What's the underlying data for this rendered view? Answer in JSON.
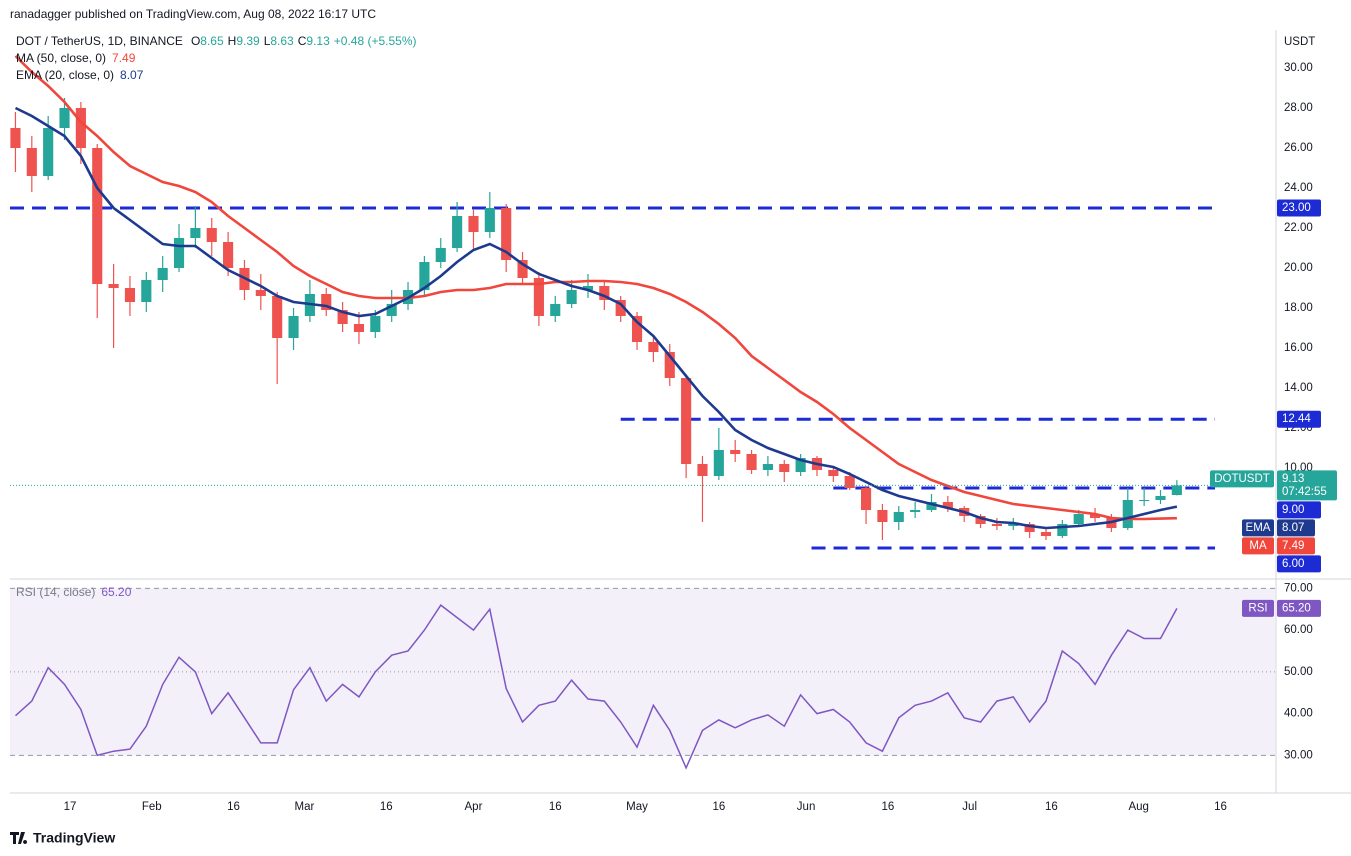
{
  "header": {
    "publisher": "ranadagger published on TradingView.com, Aug 08, 2022 16:17 UTC",
    "symbol": "DOT / TetherUS, 1D, BINANCE",
    "ohlc_labels": [
      "O",
      "H",
      "L",
      "C"
    ],
    "change": "+0.48 (+5.55%)",
    "currency": "USDT"
  },
  "chart_data": [
    {
      "type": "candlestick",
      "ticker": "DOTUSDT",
      "countdown": "07:42:55",
      "up_color": "#26a69a",
      "down_color": "#ef5350",
      "grid": false,
      "xlim": [
        "01-06",
        "08-26"
      ],
      "xticks": [
        {
          "value": "01-17",
          "label": "17"
        },
        {
          "value": "02-01",
          "label": "Feb"
        },
        {
          "value": "02-16",
          "label": "16"
        },
        {
          "value": "03-01",
          "label": "Mar"
        },
        {
          "value": "03-16",
          "label": "16"
        },
        {
          "value": "04-01",
          "label": "Apr"
        },
        {
          "value": "04-16",
          "label": "16"
        },
        {
          "value": "05-01",
          "label": "May"
        },
        {
          "value": "05-16",
          "label": "16"
        },
        {
          "value": "06-01",
          "label": "Jun"
        },
        {
          "value": "06-16",
          "label": "16"
        },
        {
          "value": "07-01",
          "label": "Jul"
        },
        {
          "value": "07-16",
          "label": "16"
        },
        {
          "value": "08-01",
          "label": "Aug"
        },
        {
          "value": "08-16",
          "label": "16"
        }
      ],
      "ylim": [
        4.5,
        31.9
      ],
      "yticks": [
        {
          "value": 10,
          "label": "10.00"
        },
        {
          "value": 12,
          "label": "12.00"
        },
        {
          "value": 14,
          "label": "14.00"
        },
        {
          "value": 16,
          "label": "16.00"
        },
        {
          "value": 18,
          "label": "18.00"
        },
        {
          "value": 20,
          "label": "20.00"
        },
        {
          "value": 22,
          "label": "22.00"
        },
        {
          "value": 24,
          "label": "24.00"
        },
        {
          "value": 26,
          "label": "26.00"
        },
        {
          "value": 28,
          "label": "28.00"
        },
        {
          "value": 30,
          "label": "30.00"
        }
      ],
      "x": [
        "01-07",
        "01-10",
        "01-13",
        "01-16",
        "01-19",
        "01-22",
        "01-25",
        "01-28",
        "01-31",
        "02-03",
        "02-06",
        "02-09",
        "02-12",
        "02-15",
        "02-18",
        "02-21",
        "02-24",
        "02-27",
        "03-02",
        "03-05",
        "03-08",
        "03-11",
        "03-14",
        "03-17",
        "03-20",
        "03-23",
        "03-26",
        "03-29",
        "04-01",
        "04-04",
        "04-07",
        "04-10",
        "04-13",
        "04-16",
        "04-19",
        "04-22",
        "04-25",
        "04-28",
        "05-01",
        "05-04",
        "05-07",
        "05-10",
        "05-13",
        "05-16",
        "05-19",
        "05-22",
        "05-25",
        "05-28",
        "05-31",
        "06-03",
        "06-06",
        "06-09",
        "06-12",
        "06-15",
        "06-18",
        "06-21",
        "06-24",
        "06-27",
        "06-30",
        "07-03",
        "07-06",
        "07-09",
        "07-12",
        "07-15",
        "07-18",
        "07-21",
        "07-24",
        "07-27",
        "07-30",
        "08-02",
        "08-05",
        "08-08"
      ],
      "open": [
        27,
        26,
        24.6,
        27,
        28,
        26,
        19.2,
        19,
        18.3,
        19.4,
        20,
        21.5,
        22,
        21.3,
        20,
        18.9,
        18.6,
        16.5,
        17.6,
        18.7,
        17.9,
        17.2,
        16.8,
        17.6,
        18.2,
        18.9,
        20.3,
        21,
        22.6,
        21.8,
        23,
        20.4,
        19.5,
        17.6,
        18.2,
        18.9,
        19.1,
        18.4,
        17.6,
        16.3,
        15.8,
        14.5,
        10.2,
        9.6,
        10.9,
        10.7,
        9.9,
        10.2,
        9.8,
        10.5,
        9.9,
        9.6,
        9,
        7.9,
        7.3,
        7.8,
        7.9,
        8.3,
        8,
        7.6,
        7.2,
        7.1,
        7.2,
        6.8,
        6.6,
        7.2,
        7.7,
        7.5,
        7,
        8.4,
        8.4,
        8.65
      ],
      "high": [
        27.8,
        26.6,
        27.6,
        28.5,
        28.3,
        26.2,
        20.2,
        19.6,
        19.8,
        20.6,
        22.2,
        23.1,
        22.5,
        21.8,
        20.4,
        19.7,
        18.8,
        18,
        19.4,
        19,
        18.3,
        17.8,
        17.9,
        18.9,
        19.3,
        20.6,
        21.5,
        23.3,
        22.9,
        23.8,
        23.2,
        20.8,
        19.8,
        18.6,
        19.4,
        19.7,
        19.3,
        18.6,
        17.8,
        16.6,
        16.2,
        14.7,
        10.6,
        12,
        11.4,
        10.9,
        10.6,
        10.4,
        10.7,
        10.6,
        10.1,
        9.8,
        9.1,
        8.2,
        8.1,
        8.3,
        8.7,
        8.6,
        8.1,
        7.7,
        7.5,
        7.5,
        7.3,
        7,
        7.4,
        7.9,
        8,
        7.7,
        9,
        9,
        8.9,
        9.39
      ],
      "low": [
        24.8,
        23.8,
        24.4,
        26.4,
        25.2,
        17.5,
        16,
        17.6,
        17.8,
        18.8,
        19.8,
        21,
        20.6,
        19.6,
        18.4,
        17.9,
        14.2,
        15.9,
        17.3,
        17.6,
        16.8,
        16.2,
        16.5,
        17.3,
        17.9,
        18.6,
        20,
        20.8,
        20.9,
        21.5,
        19.8,
        19.2,
        17.1,
        17.3,
        18,
        18.5,
        17.9,
        17.3,
        15.9,
        15.3,
        14.1,
        9.5,
        7.3,
        9.4,
        10.3,
        9.7,
        9.6,
        9.3,
        9.6,
        9.6,
        9.3,
        8.9,
        7.2,
        6.4,
        6.9,
        7.5,
        7.8,
        7.8,
        7.3,
        7,
        6.9,
        6.9,
        6.5,
        6.4,
        6.5,
        7.1,
        7.3,
        6.8,
        6.9,
        8.1,
        8.2,
        8.63
      ],
      "close": [
        26,
        24.6,
        27,
        28,
        26,
        19.2,
        19,
        18.3,
        19.4,
        20,
        21.5,
        22,
        21.3,
        20,
        18.9,
        18.6,
        16.5,
        17.6,
        18.7,
        17.9,
        17.2,
        16.8,
        17.6,
        18.2,
        18.9,
        20.3,
        21,
        22.6,
        21.8,
        23,
        20.4,
        19.5,
        17.6,
        18.2,
        18.9,
        19.1,
        18.4,
        17.6,
        16.3,
        15.8,
        14.5,
        10.2,
        9.6,
        10.9,
        10.7,
        9.9,
        10.2,
        9.8,
        10.5,
        9.9,
        9.6,
        9,
        7.9,
        7.3,
        7.8,
        7.9,
        8.3,
        8,
        7.6,
        7.2,
        7.1,
        7.2,
        6.8,
        6.6,
        7.2,
        7.7,
        7.5,
        7,
        8.4,
        8.4,
        8.6,
        9.13
      ],
      "series": [
        {
          "name": "MA (50, close, 0)",
          "axis_label": "MA",
          "color": "#f0463c",
          "values": [
            30.6,
            29.8,
            29.1,
            28.3,
            27.3,
            26.6,
            25.8,
            25.1,
            24.7,
            24.3,
            24.1,
            23.8,
            23.3,
            22.6,
            22,
            21.4,
            20.8,
            20.1,
            19.6,
            19.2,
            18.8,
            18.6,
            18.5,
            18.5,
            18.5,
            18.6,
            18.8,
            18.9,
            18.9,
            19,
            19.2,
            19.2,
            19.2,
            19.3,
            19.3,
            19.35,
            19.35,
            19.3,
            19.2,
            19,
            18.7,
            18.3,
            17.8,
            17.2,
            16.5,
            15.6,
            15,
            14.4,
            13.8,
            13.3,
            12.7,
            12,
            11.4,
            10.8,
            10.2,
            9.8,
            9.4,
            9.1,
            8.8,
            8.6,
            8.4,
            8.2,
            8.1,
            8,
            7.9,
            7.8,
            7.7,
            7.5,
            7.45,
            7.45,
            7.47,
            7.49
          ]
        },
        {
          "name": "EMA (20, close, 0)",
          "axis_label": "EMA",
          "color": "#1e3a8f",
          "values": [
            28,
            27.6,
            27.1,
            26.6,
            25.6,
            24,
            23,
            22.4,
            21.8,
            21.2,
            21.1,
            21.1,
            20.5,
            19.9,
            19.5,
            19.1,
            18.6,
            18.3,
            18.2,
            18.1,
            17.8,
            17.6,
            17.7,
            18.1,
            18.5,
            19,
            19.6,
            20.3,
            20.9,
            21.2,
            20.8,
            20.2,
            19.7,
            19.4,
            19.1,
            18.9,
            18.6,
            18.2,
            17.3,
            16.6,
            15.6,
            14.6,
            13.6,
            12.8,
            11.9,
            11.4,
            11,
            10.7,
            10.4,
            10.2,
            10.05,
            9.7,
            9.3,
            8.9,
            8.6,
            8.4,
            8.2,
            8,
            7.8,
            7.5,
            7.3,
            7.25,
            7.1,
            7,
            7.05,
            7.1,
            7.2,
            7.3,
            7.5,
            7.7,
            7.9,
            8.07
          ]
        }
      ],
      "levels_color": "#1c2bd4",
      "levels": [
        {
          "value": 23,
          "label": "23.00",
          "from": "01-06",
          "to": "08-15"
        },
        {
          "value": 12.44,
          "label": "12.44",
          "from": "04-28",
          "to": "08-15"
        },
        {
          "value": 9,
          "label": "9.00",
          "from": "06-06",
          "to": "08-15"
        },
        {
          "value": 6,
          "label": "6.00",
          "from": "06-02",
          "to": "08-15"
        }
      ]
    },
    {
      "type": "line",
      "name": "RSI (14, close)",
      "axis_label": "RSI",
      "current_label": "65.20",
      "color": "#7e57c2",
      "ylim": [
        21,
        72
      ],
      "yticks": [
        {
          "value": 30,
          "label": "30.00"
        },
        {
          "value": 40,
          "label": "40.00"
        },
        {
          "value": 50,
          "label": "50.00"
        },
        {
          "value": 60,
          "label": "60.00"
        },
        {
          "value": 70,
          "label": "70.00"
        }
      ],
      "band": [
        30,
        70
      ],
      "midline": 50,
      "values": [
        39.5,
        43,
        51,
        47,
        41,
        30,
        31,
        31.5,
        37,
        47,
        53.5,
        50,
        40,
        45,
        39,
        33,
        33,
        45.7,
        51,
        43,
        47,
        44,
        50,
        54,
        55,
        60,
        66,
        63,
        60,
        65,
        46,
        38,
        42,
        43,
        48,
        43.5,
        43,
        38,
        32,
        42,
        36,
        27,
        36,
        38.5,
        36.6,
        38.5,
        39.7,
        37,
        44.5,
        40,
        41,
        38,
        33,
        31,
        39,
        42,
        43,
        45,
        39,
        38,
        43,
        44,
        38,
        43,
        55,
        52,
        47,
        54,
        60,
        58,
        58,
        65.2
      ]
    }
  ],
  "footer": {
    "brand": "TradingView"
  }
}
